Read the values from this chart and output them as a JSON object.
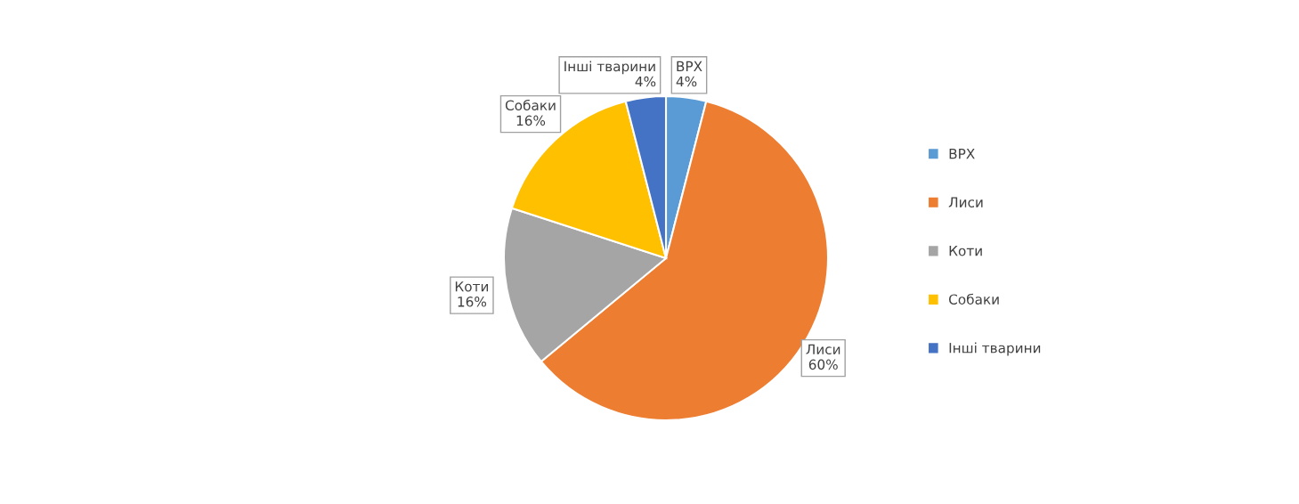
{
  "chart_data": {
    "type": "pie",
    "categories": [
      "ВРХ",
      "Лиси",
      "Коти",
      "Собаки",
      "Інші тварини"
    ],
    "values": [
      4,
      60,
      16,
      16,
      4
    ],
    "value_labels": [
      "4%",
      "60%",
      "16%",
      "16%",
      "4%"
    ],
    "colors": [
      "#5b9bd5",
      "#ed7d31",
      "#a5a5a5",
      "#ffc000",
      "#4472c4"
    ],
    "legend": "right"
  }
}
